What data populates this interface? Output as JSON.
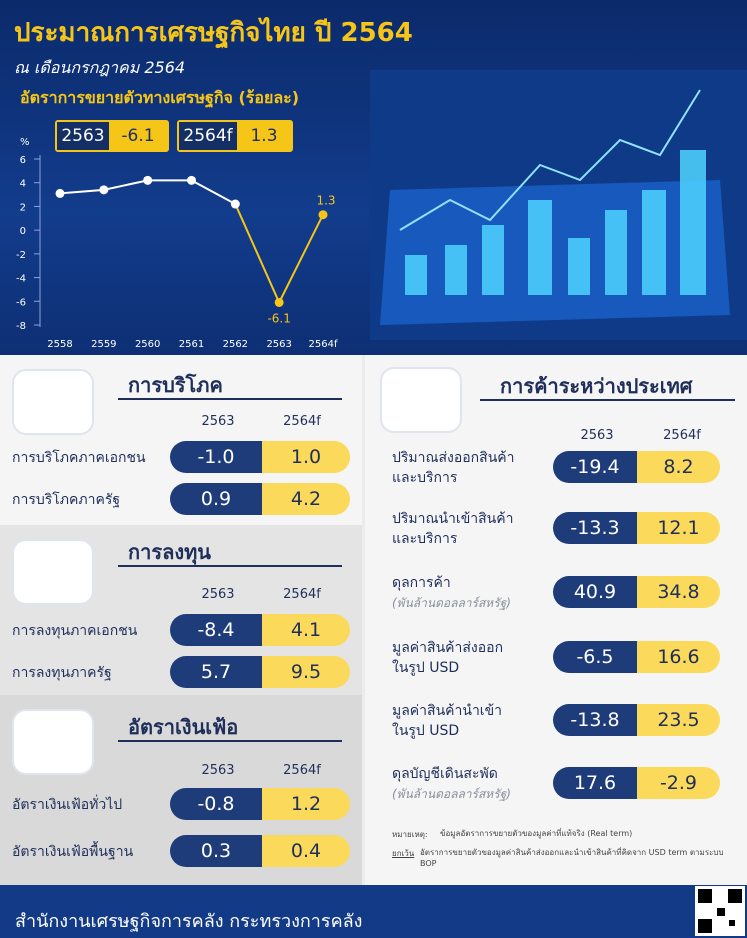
{
  "header": {
    "title": "ประมาณการเศรษฐกิจไทย ปี 2564",
    "subtitle": "ณ เดือนกรกฎาคม 2564"
  },
  "chart_data": {
    "type": "line",
    "title": "อัตราการขยายตัวทางเศรษฐกิจ (ร้อยละ)",
    "y_label": "%",
    "categories": [
      "2558",
      "2559",
      "2560",
      "2561",
      "2562",
      "2563",
      "2564f"
    ],
    "values": [
      3.1,
      3.4,
      4.2,
      4.2,
      2.2,
      -6.1,
      1.3
    ],
    "color": "#ffffff",
    "highlight_color": "#f5c518",
    "ylim": [
      -8,
      6
    ],
    "yticks": [
      -8,
      -6,
      -4,
      -2,
      0,
      2,
      4,
      6
    ],
    "highlights": [
      {
        "label": "2563",
        "value": -6.1
      },
      {
        "label": "2564f",
        "value": 1.3
      }
    ]
  },
  "sections": [
    {
      "title": "การบริโภค",
      "columns": [
        "2563",
        "2564f"
      ],
      "rows": [
        {
          "label": "การบริโภคภาคเอกชน",
          "values": [
            "-1.0",
            "1.0"
          ]
        },
        {
          "label": "การบริโภคภาครัฐ",
          "values": [
            "0.9",
            "4.2"
          ]
        }
      ]
    },
    {
      "title": "การลงทุน",
      "columns": [
        "2563",
        "2564f"
      ],
      "rows": [
        {
          "label": "การลงทุนภาคเอกชน",
          "values": [
            "-8.4",
            "4.1"
          ]
        },
        {
          "label": "การลงทุนภาครัฐ",
          "values": [
            "5.7",
            "9.5"
          ]
        }
      ]
    },
    {
      "title": "อัตราเงินเฟ้อ",
      "columns": [
        "2563",
        "2564f"
      ],
      "rows": [
        {
          "label": "อัตราเงินเฟ้อทั่วไป",
          "values": [
            "-0.8",
            "1.2"
          ]
        },
        {
          "label": "อัตราเงินเฟ้อพื้นฐาน",
          "values": [
            "0.3",
            "0.4"
          ]
        }
      ]
    }
  ],
  "trade": {
    "title": "การค้าระหว่างประเทศ",
    "columns": [
      "2563",
      "2564f"
    ],
    "rows": [
      {
        "lines": [
          "ปริมาณส่งออกสินค้า",
          "และบริการ"
        ],
        "values": [
          "-19.4",
          "8.2"
        ]
      },
      {
        "lines": [
          "ปริมาณนำเข้าสินค้า",
          "และบริการ"
        ],
        "values": [
          "-13.3",
          "12.1"
        ]
      },
      {
        "lines": [
          "ดุลการค้า"
        ],
        "unit": "(พันล้านดอลลาร์สหรัฐ)",
        "values": [
          "40.9",
          "34.8"
        ]
      },
      {
        "lines": [
          "มูลค่าสินค้าส่งออก",
          "ในรูป USD"
        ],
        "values": [
          "-6.5",
          "16.6"
        ]
      },
      {
        "lines": [
          "มูลค่าสินค้านำเข้า",
          "ในรูป USD"
        ],
        "values": [
          "-13.8",
          "23.5"
        ]
      },
      {
        "lines": [
          "ดุลบัญชีเดินสะพัด"
        ],
        "unit": "(พันล้านดอลลาร์สหรัฐ)",
        "values": [
          "17.6",
          "-2.9"
        ]
      }
    ]
  },
  "notes": [
    {
      "label": "หมายเหตุ:",
      "text": "ข้อมูลอัตราการขยายตัวของมูลค่าที่แท้จริง (Real term)"
    },
    {
      "label": "ยกเว้น",
      "text": "อัตราการขยายตัวของมูลค่าสินค้าส่งออกและนำเข้าสินค้าที่คิดจาก USD term ตามระบบ BOP"
    }
  ],
  "footer": "สำนักงานเศรษฐกิจการคลัง กระทรวงการคลัง"
}
